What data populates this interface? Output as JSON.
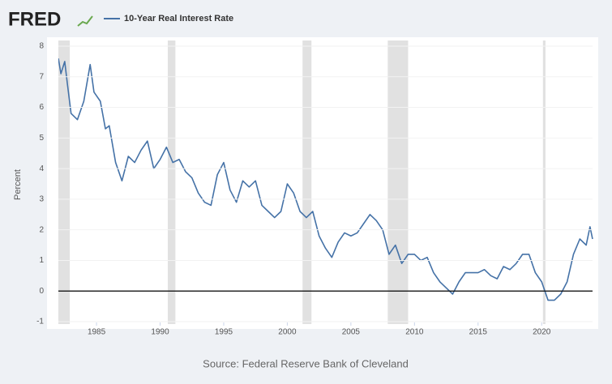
{
  "chart_data": {
    "type": "line",
    "logo": "FRED",
    "ylabel": "Percent",
    "source": "Source: Federal Reserve Bank of Cleveland",
    "x": [
      1982.0,
      1982.2,
      1982.5,
      1982.7,
      1983.0,
      1983.5,
      1984.0,
      1984.5,
      1984.8,
      1985.3,
      1985.7,
      1986.0,
      1986.5,
      1987.0,
      1987.5,
      1988.0,
      1988.5,
      1989.0,
      1989.5,
      1990.0,
      1990.5,
      1991.0,
      1991.5,
      1992.0,
      1992.5,
      1993.0,
      1993.5,
      1994.0,
      1994.5,
      1995.0,
      1995.5,
      1996.0,
      1996.5,
      1997.0,
      1997.5,
      1998.0,
      1998.5,
      1999.0,
      1999.5,
      2000.0,
      2000.5,
      2001.0,
      2001.5,
      2002.0,
      2002.5,
      2003.0,
      2003.5,
      2004.0,
      2004.5,
      2005.0,
      2005.5,
      2006.0,
      2006.5,
      2007.0,
      2007.5,
      2008.0,
      2008.5,
      2009.0,
      2009.5,
      2010.0,
      2010.5,
      2011.0,
      2011.5,
      2012.0,
      2012.5,
      2013.0,
      2013.5,
      2014.0,
      2014.5,
      2015.0,
      2015.5,
      2016.0,
      2016.5,
      2017.0,
      2017.5,
      2018.0,
      2018.5,
      2019.0,
      2019.5,
      2020.0,
      2020.5,
      2021.0,
      2021.5,
      2022.0,
      2022.5,
      2023.0,
      2023.5,
      2023.8,
      2024.0
    ],
    "series": [
      {
        "name": "10-Year Real Interest Rate",
        "color": "#4572a7",
        "values": [
          7.6,
          7.1,
          7.5,
          6.8,
          5.8,
          5.6,
          6.2,
          7.4,
          6.5,
          6.2,
          5.3,
          5.4,
          4.2,
          3.6,
          4.4,
          4.2,
          4.6,
          4.9,
          4.0,
          4.3,
          4.7,
          4.2,
          4.3,
          3.9,
          3.7,
          3.2,
          2.9,
          2.8,
          3.8,
          4.2,
          3.3,
          2.9,
          3.6,
          3.4,
          3.6,
          2.8,
          2.6,
          2.4,
          2.6,
          3.5,
          3.2,
          2.6,
          2.4,
          2.6,
          1.8,
          1.4,
          1.1,
          1.6,
          1.9,
          1.8,
          1.9,
          2.2,
          2.5,
          2.3,
          2.0,
          1.2,
          1.5,
          0.9,
          1.2,
          1.2,
          1.0,
          1.1,
          0.6,
          0.3,
          0.1,
          -0.1,
          0.3,
          0.6,
          0.6,
          0.6,
          0.7,
          0.5,
          0.4,
          0.8,
          0.7,
          0.9,
          1.2,
          1.2,
          0.6,
          0.3,
          -0.3,
          -0.3,
          -0.1,
          0.3,
          1.2,
          1.7,
          1.5,
          2.1,
          1.7
        ]
      }
    ],
    "xlim": [
      1982,
      2024
    ],
    "xticks": [
      1985,
      1990,
      1995,
      2000,
      2005,
      2010,
      2015,
      2020
    ],
    "ylim": [
      -1,
      8
    ],
    "yticks": [
      -1,
      0,
      1,
      2,
      3,
      4,
      5,
      6,
      7,
      8
    ],
    "recessions": [
      [
        1981.5,
        1982.9
      ],
      [
        1990.6,
        1991.2
      ],
      [
        2001.2,
        2001.9
      ],
      [
        2007.9,
        2009.5
      ],
      [
        2020.1,
        2020.3
      ]
    ],
    "recession_color": "#e1e1e1",
    "zero_line": true
  }
}
